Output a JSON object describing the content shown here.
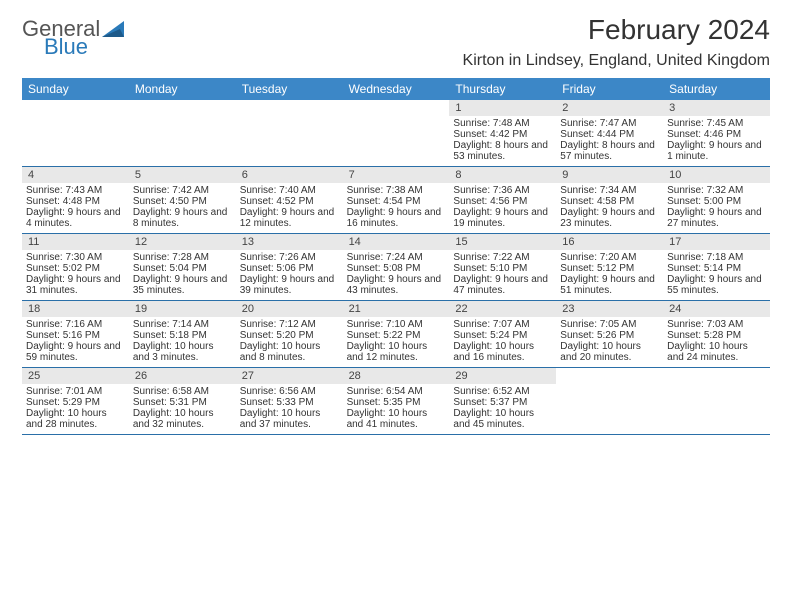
{
  "logo": {
    "part1": "General",
    "part2": "Blue"
  },
  "title": "February 2024",
  "location": "Kirton in Lindsey, England, United Kingdom",
  "colors": {
    "header_bg": "#3c87c7",
    "header_text": "#ffffff",
    "daynum_bg": "#e8e8e8",
    "week_border": "#2a6fa8",
    "logo_general": "#555555",
    "logo_blue": "#2a7ab9"
  },
  "day_names": [
    "Sunday",
    "Monday",
    "Tuesday",
    "Wednesday",
    "Thursday",
    "Friday",
    "Saturday"
  ],
  "weeks": [
    [
      {
        "day": "",
        "sunrise": "",
        "sunset": "",
        "daylight": ""
      },
      {
        "day": "",
        "sunrise": "",
        "sunset": "",
        "daylight": ""
      },
      {
        "day": "",
        "sunrise": "",
        "sunset": "",
        "daylight": ""
      },
      {
        "day": "",
        "sunrise": "",
        "sunset": "",
        "daylight": ""
      },
      {
        "day": "1",
        "sunrise": "Sunrise: 7:48 AM",
        "sunset": "Sunset: 4:42 PM",
        "daylight": "Daylight: 8 hours and 53 minutes."
      },
      {
        "day": "2",
        "sunrise": "Sunrise: 7:47 AM",
        "sunset": "Sunset: 4:44 PM",
        "daylight": "Daylight: 8 hours and 57 minutes."
      },
      {
        "day": "3",
        "sunrise": "Sunrise: 7:45 AM",
        "sunset": "Sunset: 4:46 PM",
        "daylight": "Daylight: 9 hours and 1 minute."
      }
    ],
    [
      {
        "day": "4",
        "sunrise": "Sunrise: 7:43 AM",
        "sunset": "Sunset: 4:48 PM",
        "daylight": "Daylight: 9 hours and 4 minutes."
      },
      {
        "day": "5",
        "sunrise": "Sunrise: 7:42 AM",
        "sunset": "Sunset: 4:50 PM",
        "daylight": "Daylight: 9 hours and 8 minutes."
      },
      {
        "day": "6",
        "sunrise": "Sunrise: 7:40 AM",
        "sunset": "Sunset: 4:52 PM",
        "daylight": "Daylight: 9 hours and 12 minutes."
      },
      {
        "day": "7",
        "sunrise": "Sunrise: 7:38 AM",
        "sunset": "Sunset: 4:54 PM",
        "daylight": "Daylight: 9 hours and 16 minutes."
      },
      {
        "day": "8",
        "sunrise": "Sunrise: 7:36 AM",
        "sunset": "Sunset: 4:56 PM",
        "daylight": "Daylight: 9 hours and 19 minutes."
      },
      {
        "day": "9",
        "sunrise": "Sunrise: 7:34 AM",
        "sunset": "Sunset: 4:58 PM",
        "daylight": "Daylight: 9 hours and 23 minutes."
      },
      {
        "day": "10",
        "sunrise": "Sunrise: 7:32 AM",
        "sunset": "Sunset: 5:00 PM",
        "daylight": "Daylight: 9 hours and 27 minutes."
      }
    ],
    [
      {
        "day": "11",
        "sunrise": "Sunrise: 7:30 AM",
        "sunset": "Sunset: 5:02 PM",
        "daylight": "Daylight: 9 hours and 31 minutes."
      },
      {
        "day": "12",
        "sunrise": "Sunrise: 7:28 AM",
        "sunset": "Sunset: 5:04 PM",
        "daylight": "Daylight: 9 hours and 35 minutes."
      },
      {
        "day": "13",
        "sunrise": "Sunrise: 7:26 AM",
        "sunset": "Sunset: 5:06 PM",
        "daylight": "Daylight: 9 hours and 39 minutes."
      },
      {
        "day": "14",
        "sunrise": "Sunrise: 7:24 AM",
        "sunset": "Sunset: 5:08 PM",
        "daylight": "Daylight: 9 hours and 43 minutes."
      },
      {
        "day": "15",
        "sunrise": "Sunrise: 7:22 AM",
        "sunset": "Sunset: 5:10 PM",
        "daylight": "Daylight: 9 hours and 47 minutes."
      },
      {
        "day": "16",
        "sunrise": "Sunrise: 7:20 AM",
        "sunset": "Sunset: 5:12 PM",
        "daylight": "Daylight: 9 hours and 51 minutes."
      },
      {
        "day": "17",
        "sunrise": "Sunrise: 7:18 AM",
        "sunset": "Sunset: 5:14 PM",
        "daylight": "Daylight: 9 hours and 55 minutes."
      }
    ],
    [
      {
        "day": "18",
        "sunrise": "Sunrise: 7:16 AM",
        "sunset": "Sunset: 5:16 PM",
        "daylight": "Daylight: 9 hours and 59 minutes."
      },
      {
        "day": "19",
        "sunrise": "Sunrise: 7:14 AM",
        "sunset": "Sunset: 5:18 PM",
        "daylight": "Daylight: 10 hours and 3 minutes."
      },
      {
        "day": "20",
        "sunrise": "Sunrise: 7:12 AM",
        "sunset": "Sunset: 5:20 PM",
        "daylight": "Daylight: 10 hours and 8 minutes."
      },
      {
        "day": "21",
        "sunrise": "Sunrise: 7:10 AM",
        "sunset": "Sunset: 5:22 PM",
        "daylight": "Daylight: 10 hours and 12 minutes."
      },
      {
        "day": "22",
        "sunrise": "Sunrise: 7:07 AM",
        "sunset": "Sunset: 5:24 PM",
        "daylight": "Daylight: 10 hours and 16 minutes."
      },
      {
        "day": "23",
        "sunrise": "Sunrise: 7:05 AM",
        "sunset": "Sunset: 5:26 PM",
        "daylight": "Daylight: 10 hours and 20 minutes."
      },
      {
        "day": "24",
        "sunrise": "Sunrise: 7:03 AM",
        "sunset": "Sunset: 5:28 PM",
        "daylight": "Daylight: 10 hours and 24 minutes."
      }
    ],
    [
      {
        "day": "25",
        "sunrise": "Sunrise: 7:01 AM",
        "sunset": "Sunset: 5:29 PM",
        "daylight": "Daylight: 10 hours and 28 minutes."
      },
      {
        "day": "26",
        "sunrise": "Sunrise: 6:58 AM",
        "sunset": "Sunset: 5:31 PM",
        "daylight": "Daylight: 10 hours and 32 minutes."
      },
      {
        "day": "27",
        "sunrise": "Sunrise: 6:56 AM",
        "sunset": "Sunset: 5:33 PM",
        "daylight": "Daylight: 10 hours and 37 minutes."
      },
      {
        "day": "28",
        "sunrise": "Sunrise: 6:54 AM",
        "sunset": "Sunset: 5:35 PM",
        "daylight": "Daylight: 10 hours and 41 minutes."
      },
      {
        "day": "29",
        "sunrise": "Sunrise: 6:52 AM",
        "sunset": "Sunset: 5:37 PM",
        "daylight": "Daylight: 10 hours and 45 minutes."
      },
      {
        "day": "",
        "sunrise": "",
        "sunset": "",
        "daylight": ""
      },
      {
        "day": "",
        "sunrise": "",
        "sunset": "",
        "daylight": ""
      }
    ]
  ]
}
